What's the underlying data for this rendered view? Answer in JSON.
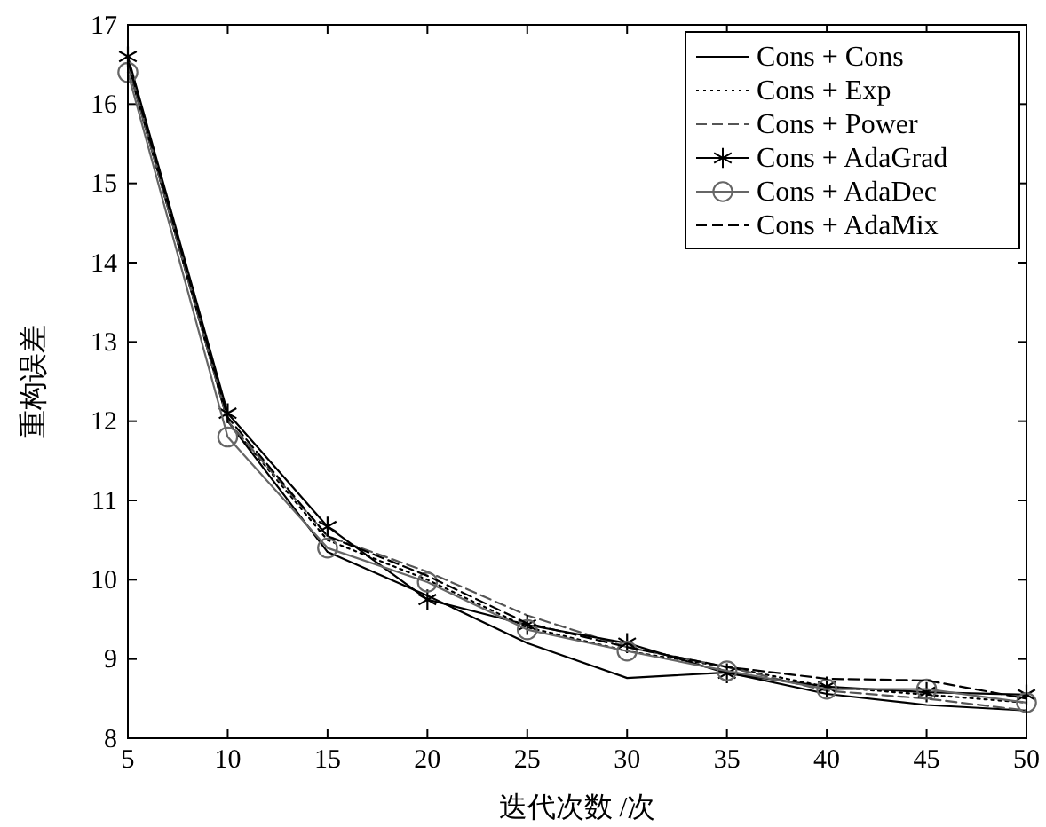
{
  "chart_data": {
    "type": "line",
    "xlabel": "迭代次数 /次",
    "ylabel": "重构误差",
    "x": [
      5,
      10,
      15,
      20,
      25,
      30,
      35,
      40,
      45,
      50
    ],
    "xlim": [
      5,
      50
    ],
    "xticks": [
      5,
      10,
      15,
      20,
      25,
      30,
      35,
      40,
      45,
      50
    ],
    "ylim": [
      8,
      17
    ],
    "yticks": [
      8,
      9,
      10,
      11,
      12,
      13,
      14,
      15,
      16,
      17
    ],
    "grid": false,
    "legend": "top right",
    "series": [
      {
        "name": "Cons + Cons",
        "color": "#000000",
        "line_style": "solid",
        "marker": "none",
        "values": [
          16.5,
          12.0,
          10.35,
          9.8,
          9.2,
          8.76,
          8.83,
          8.56,
          8.42,
          8.35
        ]
      },
      {
        "name": "Cons + Exp",
        "color": "#000000",
        "line_style": "dotted",
        "marker": "none",
        "values": [
          16.5,
          12.0,
          10.5,
          10.0,
          9.4,
          9.1,
          8.9,
          8.65,
          8.55,
          8.45
        ]
      },
      {
        "name": "Cons + Power",
        "color": "#555555",
        "line_style": "dashed",
        "marker": "none",
        "values": [
          16.5,
          12.0,
          10.55,
          10.1,
          9.55,
          9.15,
          8.9,
          8.6,
          8.5,
          8.35
        ]
      },
      {
        "name": "Cons + AdaGrad",
        "color": "#000000",
        "line_style": "solid",
        "marker": "cross",
        "values": [
          16.6,
          12.1,
          10.67,
          9.75,
          9.43,
          9.2,
          8.82,
          8.65,
          8.58,
          8.55
        ]
      },
      {
        "name": "Cons + AdaDec",
        "color": "#666666",
        "line_style": "solid",
        "marker": "circle",
        "values": [
          16.4,
          11.8,
          10.4,
          9.97,
          9.37,
          9.1,
          8.85,
          8.62,
          8.62,
          8.45
        ]
      },
      {
        "name": "Cons + AdaMix",
        "color": "#000000",
        "line_style": "dashed",
        "marker": "none",
        "values": [
          16.55,
          12.05,
          10.55,
          10.05,
          9.45,
          9.15,
          8.9,
          8.75,
          8.73,
          8.5
        ]
      }
    ]
  }
}
